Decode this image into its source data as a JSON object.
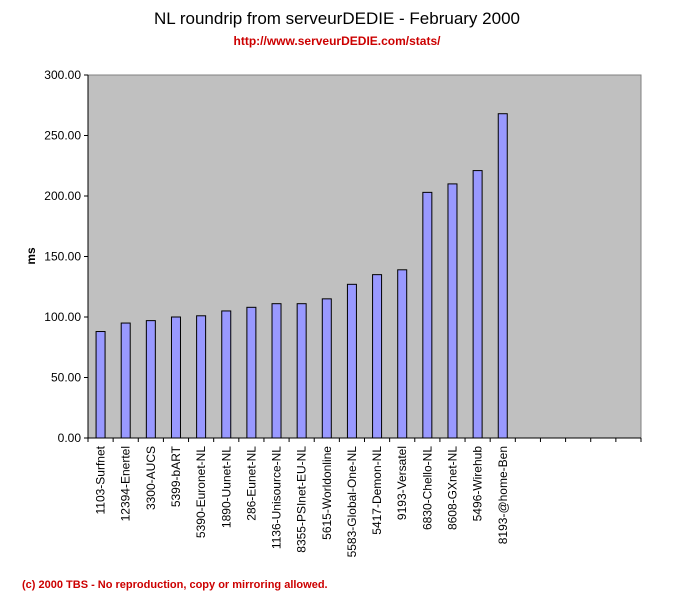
{
  "chart_data": {
    "type": "bar",
    "title": "NL roundrip from serveurDEDIE - February 2000",
    "subtitle": "http://www.serveurDEDIE.com/stats/",
    "xlabel": "",
    "ylabel": "ms",
    "ylim": [
      0,
      300
    ],
    "yticks": [
      "0.00",
      "50.00",
      "100.00",
      "150.00",
      "200.00",
      "250.00",
      "300.00"
    ],
    "categories": [
      "1103-Surfnet",
      "12394-Enertel",
      "3300-AUCS",
      "5399-bART",
      "5390-Euronet-NL",
      "1890-Uunet-NL",
      "286-Eunet-NL",
      "1136-Unisource-NL",
      "8355-PSInet-EU-NL",
      "5615-Worldonline",
      "5583-Global-One-NL",
      "5417-Demon-NL",
      "9193-Versatel",
      "6830-Chello-NL",
      "8608-GXnet-NL",
      "5496-Wirehub",
      "8193-@home-Ben"
    ],
    "values": [
      88,
      95,
      97,
      100,
      101,
      105,
      108,
      111,
      111,
      115,
      127,
      135,
      139,
      203,
      210,
      221,
      268
    ],
    "empty_slots": 5,
    "grid": false,
    "plot_background": "#c0c0c0",
    "bar_color": "#9999ff",
    "bar_border": "#000000"
  },
  "footer": "(c) 2000 TBS - No reproduction, copy or mirroring allowed.",
  "colors": {
    "title": "#000000",
    "accent": "#cc0000"
  }
}
